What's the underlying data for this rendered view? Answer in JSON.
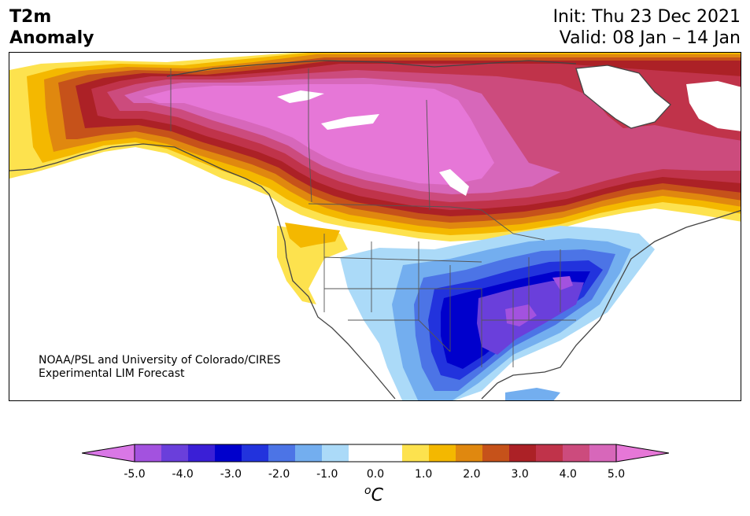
{
  "header": {
    "title_line1": "T2m",
    "title_line2": "Anomaly",
    "init": "Init: Thu 23 Dec 2021",
    "valid": "Valid: 08 Jan – 14 Jan"
  },
  "credit": {
    "line1": "NOAA/PSL and University of Colorado/CIRES",
    "line2": "Experimental LIM Forecast"
  },
  "colorbar": {
    "colors": [
      "#d977e6",
      "#a352df",
      "#6a3fdb",
      "#3a1fd6",
      "#0000cc",
      "#2233dd",
      "#4c74e6",
      "#73aeef",
      "#abdaf8",
      "#ffffff",
      "#ffffff",
      "#fde24e",
      "#f4b800",
      "#e0880f",
      "#c6521a",
      "#ac2126",
      "#c0334a",
      "#cc4b7d",
      "#d767ba",
      "#e677d7"
    ],
    "tick_labels": [
      "-5.0",
      "-4.0",
      "-3.0",
      "-2.0",
      "-1.0",
      "0.0",
      "1.0",
      "2.0",
      "3.0",
      "4.0",
      "5.0"
    ],
    "unit_base": "o",
    "unit_letter": "C"
  }
}
